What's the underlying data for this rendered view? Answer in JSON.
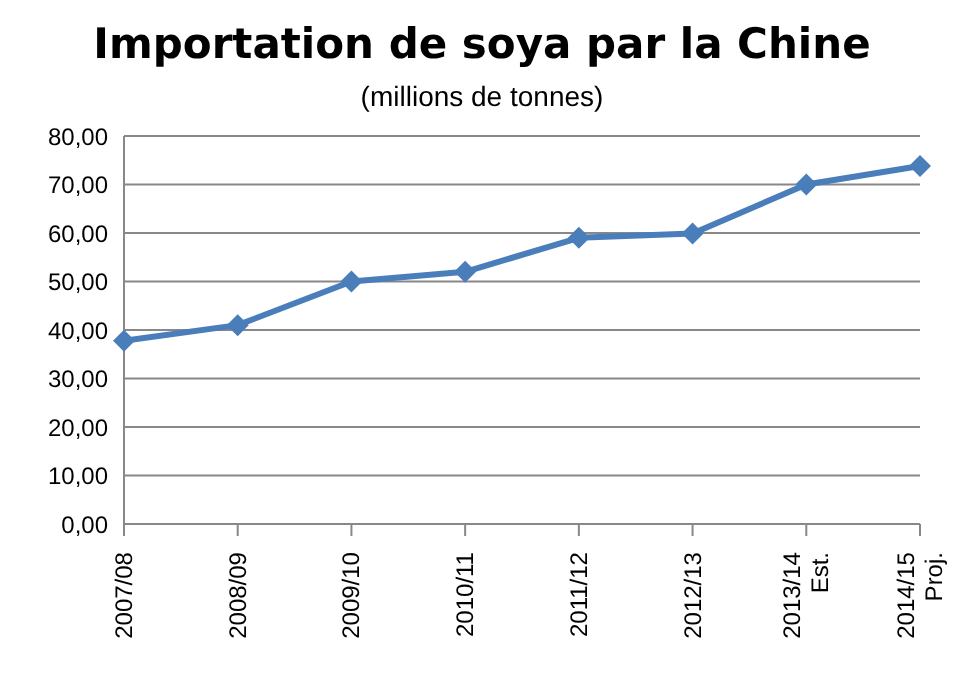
{
  "chart_data": {
    "type": "line",
    "title": "Importation de soya par la Chine",
    "subtitle": "(millions de tonnes)",
    "categories": [
      "2007/08",
      "2008/09",
      "2009/10",
      "2010/11",
      "2011/12",
      "2012/13",
      "2013/14 Est.",
      "2014/15 Proj."
    ],
    "series": [
      {
        "color": "#4a7ebb",
        "values": [
          37.8,
          41,
          50,
          52,
          59,
          59.9,
          70,
          73.8
        ]
      }
    ],
    "ylim": [
      0,
      80
    ],
    "yticks": [
      {
        "value": 0,
        "label": "0,00"
      },
      {
        "value": 10,
        "label": "10,00"
      },
      {
        "value": 20,
        "label": "20,00"
      },
      {
        "value": 30,
        "label": "30,00"
      },
      {
        "value": 40,
        "label": "40,00"
      },
      {
        "value": 50,
        "label": "50,00"
      },
      {
        "value": 60,
        "label": "60,00"
      },
      {
        "value": 70,
        "label": "70,00"
      },
      {
        "value": 80,
        "label": "80,00"
      }
    ],
    "grid": "y",
    "marker": "diamond",
    "line_style": "solid",
    "legend": false
  }
}
